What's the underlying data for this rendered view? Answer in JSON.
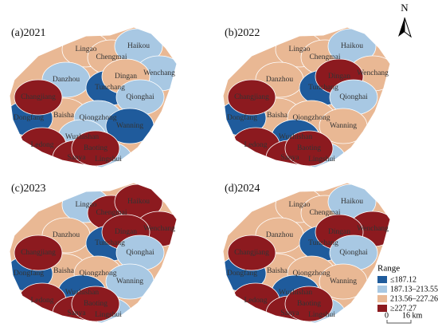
{
  "panels": [
    {
      "title": "(a)2021",
      "regions": [
        {
          "name": "Lingao",
          "class": 2
        },
        {
          "name": "Chengmai",
          "class": 2
        },
        {
          "name": "Haikou",
          "class": 1
        },
        {
          "name": "Wenchang",
          "class": 1
        },
        {
          "name": "Danzhou",
          "class": 1
        },
        {
          "name": "Tunchang",
          "class": 0
        },
        {
          "name": "Dingan",
          "class": 2
        },
        {
          "name": "Baisha",
          "class": 2
        },
        {
          "name": "Qiongzhong",
          "class": 1
        },
        {
          "name": "Qionghai",
          "class": 1
        },
        {
          "name": "Dongfang",
          "class": 0
        },
        {
          "name": "Changjiang",
          "class": 3
        },
        {
          "name": "Wuzhishan",
          "class": 1
        },
        {
          "name": "Wanning",
          "class": 0
        },
        {
          "name": "Lingshui",
          "class": 1
        },
        {
          "name": "Ledong",
          "class": 3
        },
        {
          "name": "Sanya",
          "class": 3
        },
        {
          "name": "Baoting",
          "class": 3
        }
      ]
    },
    {
      "title": "(b)2022",
      "regions": [
        {
          "name": "Lingao",
          "class": 2
        },
        {
          "name": "Chengmai",
          "class": 2
        },
        {
          "name": "Haikou",
          "class": 1
        },
        {
          "name": "Wenchang",
          "class": 2
        },
        {
          "name": "Danzhou",
          "class": 2
        },
        {
          "name": "Tunchang",
          "class": 0
        },
        {
          "name": "Dingan",
          "class": 3
        },
        {
          "name": "Baisha",
          "class": 2
        },
        {
          "name": "Qiongzhong",
          "class": 2
        },
        {
          "name": "Qionghai",
          "class": 1
        },
        {
          "name": "Dongfang",
          "class": 0
        },
        {
          "name": "Changjiang",
          "class": 3
        },
        {
          "name": "Wuzhishan",
          "class": 0
        },
        {
          "name": "Wanning",
          "class": 2
        },
        {
          "name": "Lingshui",
          "class": 1
        },
        {
          "name": "Ledong",
          "class": 3
        },
        {
          "name": "Sanya",
          "class": 3
        },
        {
          "name": "Baoting",
          "class": 3
        }
      ]
    },
    {
      "title": "(c)2023",
      "regions": [
        {
          "name": "Lingao",
          "class": 1
        },
        {
          "name": "Chengmai",
          "class": 3
        },
        {
          "name": "Haikou",
          "class": 3
        },
        {
          "name": "Wenchang",
          "class": 3
        },
        {
          "name": "Danzhou",
          "class": 2
        },
        {
          "name": "Tunchang",
          "class": 0
        },
        {
          "name": "Dingan",
          "class": 3
        },
        {
          "name": "Baisha",
          "class": 2
        },
        {
          "name": "Qiongzhong",
          "class": 2
        },
        {
          "name": "Qionghai",
          "class": 1
        },
        {
          "name": "Dongfang",
          "class": 0
        },
        {
          "name": "Changjiang",
          "class": 3
        },
        {
          "name": "Wuzhishan",
          "class": 0
        },
        {
          "name": "Wanning",
          "class": 1
        },
        {
          "name": "Lingshui",
          "class": 1
        },
        {
          "name": "Ledong",
          "class": 3
        },
        {
          "name": "Sanya",
          "class": 3
        },
        {
          "name": "Baoting",
          "class": 3
        }
      ]
    },
    {
      "title": "(d)2024",
      "regions": [
        {
          "name": "Lingao",
          "class": 2
        },
        {
          "name": "Chengmai",
          "class": 2
        },
        {
          "name": "Haikou",
          "class": 1
        },
        {
          "name": "Wenchang",
          "class": 3
        },
        {
          "name": "Danzhou",
          "class": 2
        },
        {
          "name": "Tunchang",
          "class": 0
        },
        {
          "name": "Dingan",
          "class": 3
        },
        {
          "name": "Baisha",
          "class": 2
        },
        {
          "name": "Qiongzhong",
          "class": 2
        },
        {
          "name": "Qionghai",
          "class": 1
        },
        {
          "name": "Dongfang",
          "class": 0
        },
        {
          "name": "Changjiang",
          "class": 3
        },
        {
          "name": "Wuzhishan",
          "class": 0
        },
        {
          "name": "Wanning",
          "class": 2
        },
        {
          "name": "Lingshui",
          "class": 1
        },
        {
          "name": "Ledong",
          "class": 3
        },
        {
          "name": "Sanya",
          "class": 3
        },
        {
          "name": "Baoting",
          "class": 3
        }
      ]
    }
  ],
  "legend": {
    "title": "Range",
    "items": [
      {
        "label": "≤187.12",
        "color": "#1f5b9c"
      },
      {
        "label": "187.13–213.55",
        "color": "#a8c8e3"
      },
      {
        "label": "213.56–227.26",
        "color": "#e9b894"
      },
      {
        "label": "≥227.27",
        "color": "#8c1a1f"
      }
    ]
  },
  "north_arrow": "N",
  "scale_bar": {
    "start": "0",
    "end": "16 km"
  }
}
